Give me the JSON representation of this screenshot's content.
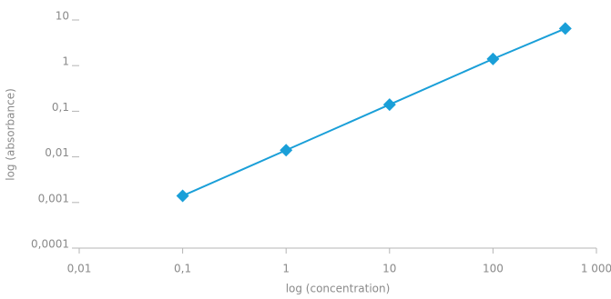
{
  "chart_data": {
    "type": "line",
    "x_label": "log (concentration)",
    "y_label": "log (absorbance)",
    "x": [
      0.1,
      1,
      10,
      100,
      500
    ],
    "series": [
      {
        "color": "#1a9fd8",
        "values": [
          0.0014,
          0.014,
          0.14,
          1.4,
          6.5
        ]
      }
    ],
    "log_x": true,
    "log_y": true,
    "xlim": [
      0.01,
      1000
    ],
    "ylim": [
      0.0001,
      10
    ],
    "xticks": [
      {
        "value": 0.01,
        "label": "0,01"
      },
      {
        "value": 0.1,
        "label": "0,1"
      },
      1,
      10,
      100,
      {
        "value": 1000,
        "label": "1 000"
      }
    ],
    "yticks": [
      {
        "value": 0.0001,
        "label": "0,0001"
      },
      {
        "value": 0.001,
        "label": "0,001"
      },
      {
        "value": 0.01,
        "label": "0,01"
      },
      {
        "value": 0.1,
        "label": "0,1"
      },
      1,
      10
    ],
    "grid": false
  }
}
